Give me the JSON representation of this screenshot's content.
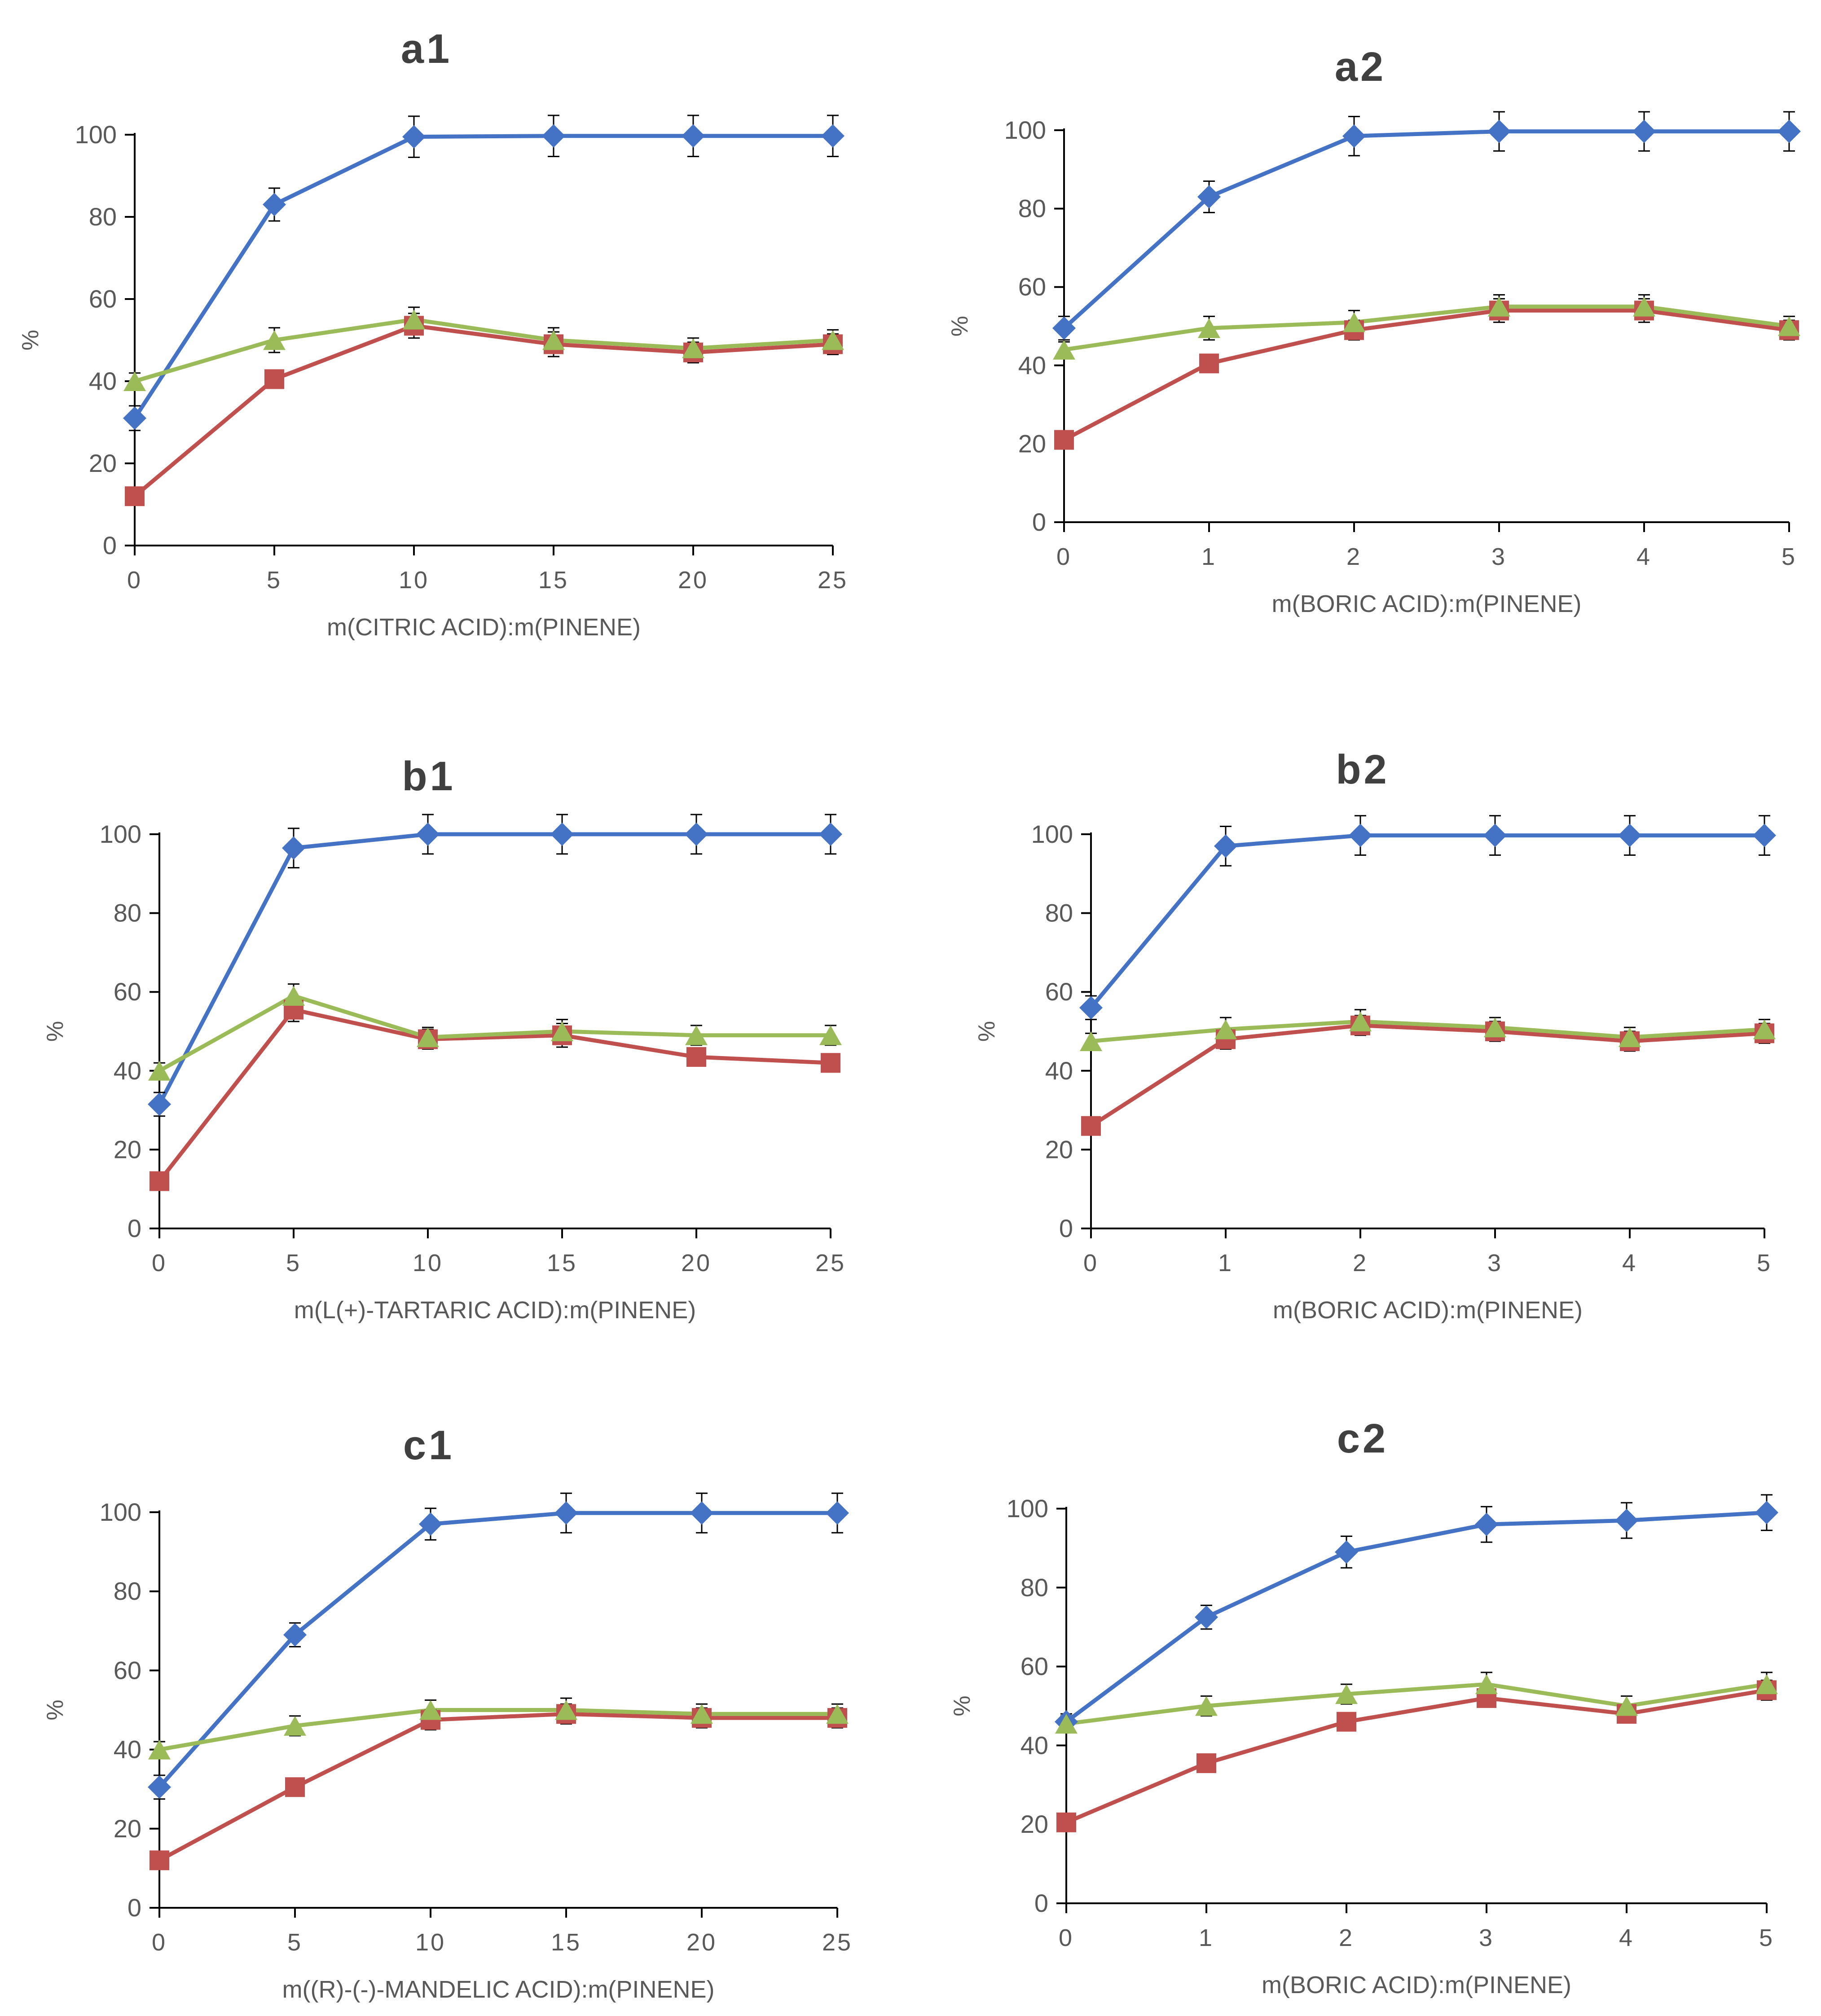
{
  "colors": {
    "conversion": "#4472C4",
    "yield": "#C0504D",
    "selectivity": "#9BBB59",
    "axis": "#000000",
    "text": "#595959",
    "title": "#404040"
  },
  "chart_data": [
    {
      "id": "a1",
      "type": "line",
      "title": "a1",
      "xlabel": "m(CITRIC ACID):m(PINENE)",
      "ylabel": "%",
      "x": [
        0,
        5,
        10,
        15,
        20,
        25
      ],
      "xlim": [
        0,
        25
      ],
      "ylim": [
        0,
        100
      ],
      "xticks": [
        "0",
        "5",
        "10",
        "15",
        "20",
        "25"
      ],
      "yticks": [
        "0",
        "20",
        "40",
        "60",
        "80",
        "100"
      ],
      "grid": false,
      "series": [
        {
          "marker": "diamond",
          "color": "#4472C4",
          "values": [
            31,
            83,
            99.5,
            99.7,
            99.7,
            99.7
          ],
          "errors": [
            3,
            4,
            5,
            5,
            5,
            5
          ]
        },
        {
          "marker": "square",
          "color": "#C0504D",
          "values": [
            12,
            40.5,
            53.5,
            49,
            47,
            49
          ],
          "errors": [
            2,
            2,
            3,
            3,
            2.5,
            2.5
          ]
        },
        {
          "marker": "triangle",
          "color": "#9BBB59",
          "values": [
            40,
            50,
            55,
            50,
            48,
            50
          ],
          "errors": [
            2,
            3,
            3,
            3,
            2.5,
            2.5
          ]
        }
      ]
    },
    {
      "id": "a2",
      "type": "line",
      "title": "a2",
      "xlabel": "m(BORIC ACID):m(PINENE)",
      "ylabel": "%",
      "x": [
        0,
        1,
        2,
        3,
        4,
        5
      ],
      "xlim": [
        0,
        5
      ],
      "ylim": [
        0,
        100
      ],
      "xticks": [
        "0",
        "1",
        "2",
        "3",
        "4",
        "5"
      ],
      "yticks": [
        "0",
        "20",
        "40",
        "60",
        "80",
        "100"
      ],
      "grid": false,
      "series": [
        {
          "marker": "diamond",
          "color": "#4472C4",
          "values": [
            49.5,
            83,
            98.5,
            99.7,
            99.7,
            99.7
          ],
          "errors": [
            3,
            4,
            5,
            5,
            5,
            5
          ]
        },
        {
          "marker": "square",
          "color": "#C0504D",
          "values": [
            21,
            40.5,
            49,
            54,
            54,
            49
          ],
          "errors": [
            2,
            2,
            2.5,
            3,
            3,
            2.5
          ]
        },
        {
          "marker": "triangle",
          "color": "#9BBB59",
          "values": [
            44,
            49.5,
            51,
            55,
            55,
            50
          ],
          "errors": [
            2,
            3,
            3,
            3,
            3,
            2.5
          ]
        }
      ]
    },
    {
      "id": "b1",
      "type": "line",
      "title": "b1",
      "xlabel": "m(L(+)-TARTARIC ACID):m(PINENE)",
      "ylabel": "%",
      "x": [
        0,
        5,
        10,
        15,
        20,
        25
      ],
      "xlim": [
        0,
        25
      ],
      "ylim": [
        0,
        100
      ],
      "xticks": [
        "0",
        "5",
        "10",
        "15",
        "20",
        "25"
      ],
      "yticks": [
        "0",
        "20",
        "40",
        "60",
        "80",
        "100"
      ],
      "grid": false,
      "series": [
        {
          "marker": "diamond",
          "color": "#4472C4",
          "values": [
            31.5,
            96.5,
            100,
            100,
            100,
            100
          ],
          "errors": [
            3,
            5,
            5,
            5,
            5,
            5
          ]
        },
        {
          "marker": "square",
          "color": "#C0504D",
          "values": [
            12,
            55.5,
            48,
            49,
            43.5,
            42
          ],
          "errors": [
            2,
            3,
            2.5,
            3,
            2,
            2
          ]
        },
        {
          "marker": "triangle",
          "color": "#9BBB59",
          "values": [
            40,
            59,
            48.5,
            50,
            49,
            49
          ],
          "errors": [
            2,
            3,
            2.5,
            3,
            2.5,
            2.5
          ]
        }
      ]
    },
    {
      "id": "b2",
      "type": "line",
      "title": "b2",
      "xlabel": "m(BORIC ACID):m(PINENE)",
      "ylabel": "%",
      "x": [
        0,
        1,
        2,
        3,
        4,
        5
      ],
      "xlim": [
        0,
        5
      ],
      "ylim": [
        0,
        100
      ],
      "xticks": [
        "0",
        "1",
        "2",
        "3",
        "4",
        "5"
      ],
      "yticks": [
        "0",
        "20",
        "40",
        "60",
        "80",
        "100"
      ],
      "grid": false,
      "series": [
        {
          "marker": "diamond",
          "color": "#4472C4",
          "values": [
            56,
            97,
            99.7,
            99.7,
            99.7,
            99.7
          ],
          "errors": [
            3,
            5,
            5,
            5,
            5,
            5
          ]
        },
        {
          "marker": "square",
          "color": "#C0504D",
          "values": [
            26,
            48,
            51.5,
            50,
            47.5,
            49.5
          ],
          "errors": [
            2,
            2.5,
            2.5,
            2.5,
            2.5,
            2.5
          ]
        },
        {
          "marker": "triangle",
          "color": "#9BBB59",
          "values": [
            47.5,
            50.5,
            52.5,
            51,
            48.5,
            50.5
          ],
          "errors": [
            2,
            3,
            3,
            2.5,
            2.5,
            2.5
          ]
        }
      ]
    },
    {
      "id": "c1",
      "type": "line",
      "title": "c1",
      "xlabel": "m((R)-(-)-MANDELIC ACID):m(PINENE)",
      "ylabel": "%",
      "x": [
        0,
        5,
        10,
        15,
        20,
        25
      ],
      "xlim": [
        0,
        25
      ],
      "ylim": [
        0,
        100
      ],
      "xticks": [
        "0",
        "5",
        "10",
        "15",
        "20",
        "25"
      ],
      "yticks": [
        "0",
        "20",
        "40",
        "60",
        "80",
        "100"
      ],
      "grid": false,
      "series": [
        {
          "marker": "diamond",
          "color": "#4472C4",
          "values": [
            30.5,
            69,
            97,
            99.8,
            99.8,
            99.8
          ],
          "errors": [
            3,
            3,
            4,
            5,
            5,
            5
          ]
        },
        {
          "marker": "square",
          "color": "#C0504D",
          "values": [
            12,
            30.5,
            47.5,
            49,
            48,
            48
          ],
          "errors": [
            2,
            2,
            2.5,
            2.5,
            2.5,
            2.5
          ]
        },
        {
          "marker": "triangle",
          "color": "#9BBB59",
          "values": [
            40,
            46,
            50,
            50,
            49,
            49
          ],
          "errors": [
            2,
            2.5,
            2.5,
            3,
            2.5,
            2.5
          ]
        }
      ]
    },
    {
      "id": "c2",
      "type": "line",
      "title": "c2",
      "xlabel": "m(BORIC ACID):m(PINENE)",
      "ylabel": "%",
      "x": [
        0,
        1,
        2,
        3,
        4,
        5
      ],
      "xlim": [
        0,
        5
      ],
      "ylim": [
        0,
        100
      ],
      "xticks": [
        "0",
        "1",
        "2",
        "3",
        "4",
        "5"
      ],
      "yticks": [
        "0",
        "20",
        "40",
        "60",
        "80",
        "100"
      ],
      "grid": false,
      "series": [
        {
          "marker": "diamond",
          "color": "#4472C4",
          "values": [
            46,
            72.5,
            89,
            96,
            97,
            99
          ],
          "errors": [
            2,
            3,
            4,
            4.5,
            4.5,
            4.5
          ]
        },
        {
          "marker": "square",
          "color": "#C0504D",
          "values": [
            20.5,
            35.5,
            46,
            52,
            48,
            54
          ],
          "errors": [
            2,
            2,
            2,
            2,
            2,
            2.5
          ]
        },
        {
          "marker": "triangle",
          "color": "#9BBB59",
          "values": [
            45.5,
            50,
            53,
            55.5,
            50,
            55.5
          ],
          "errors": [
            2,
            2.5,
            2.5,
            3,
            2.5,
            3
          ]
        }
      ]
    }
  ]
}
